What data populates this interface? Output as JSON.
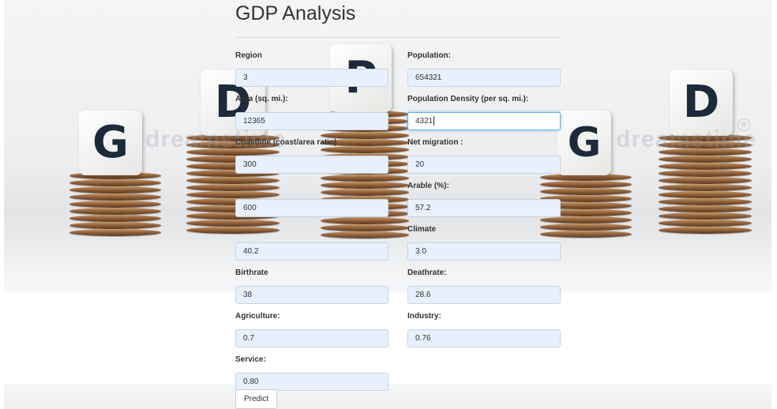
{
  "title": "GDP Analysis",
  "background": {
    "watermark": "dreamstime",
    "cube_letters": [
      "G",
      "D",
      "P",
      "G",
      "D"
    ]
  },
  "form": {
    "left": [
      {
        "label": "Region",
        "value": "3"
      },
      {
        "label": "Area (sq. mi.):",
        "value": "12365"
      },
      {
        "label": "Coastline (coast/area ratio)",
        "value": "300"
      },
      {
        "label": "",
        "value": "600"
      },
      {
        "label": "",
        "value": "40.2"
      },
      {
        "label": "Birthrate",
        "value": "38"
      },
      {
        "label": "Agriculture:",
        "value": "0.7"
      },
      {
        "label": "Service:",
        "value": "0.80"
      }
    ],
    "right": [
      {
        "label": "Population:",
        "value": "654321"
      },
      {
        "label": "Population Density (per sq. mi.):",
        "value": "4321"
      },
      {
        "label": "Net migration :",
        "value": "20"
      },
      {
        "label": "Arable (%):",
        "value": "57.2"
      },
      {
        "label": "Climate",
        "value": "3.0"
      },
      {
        "label": "Deathrate:",
        "value": "28.6"
      },
      {
        "label": "Industry:",
        "value": "0.76"
      }
    ],
    "predict_label": "Predict"
  },
  "colors": {
    "input_bg": "#e8f0fe",
    "focus_border": "#66afe9",
    "coin": "#8a5a35",
    "cube_letter": "#1c2a3a"
  }
}
